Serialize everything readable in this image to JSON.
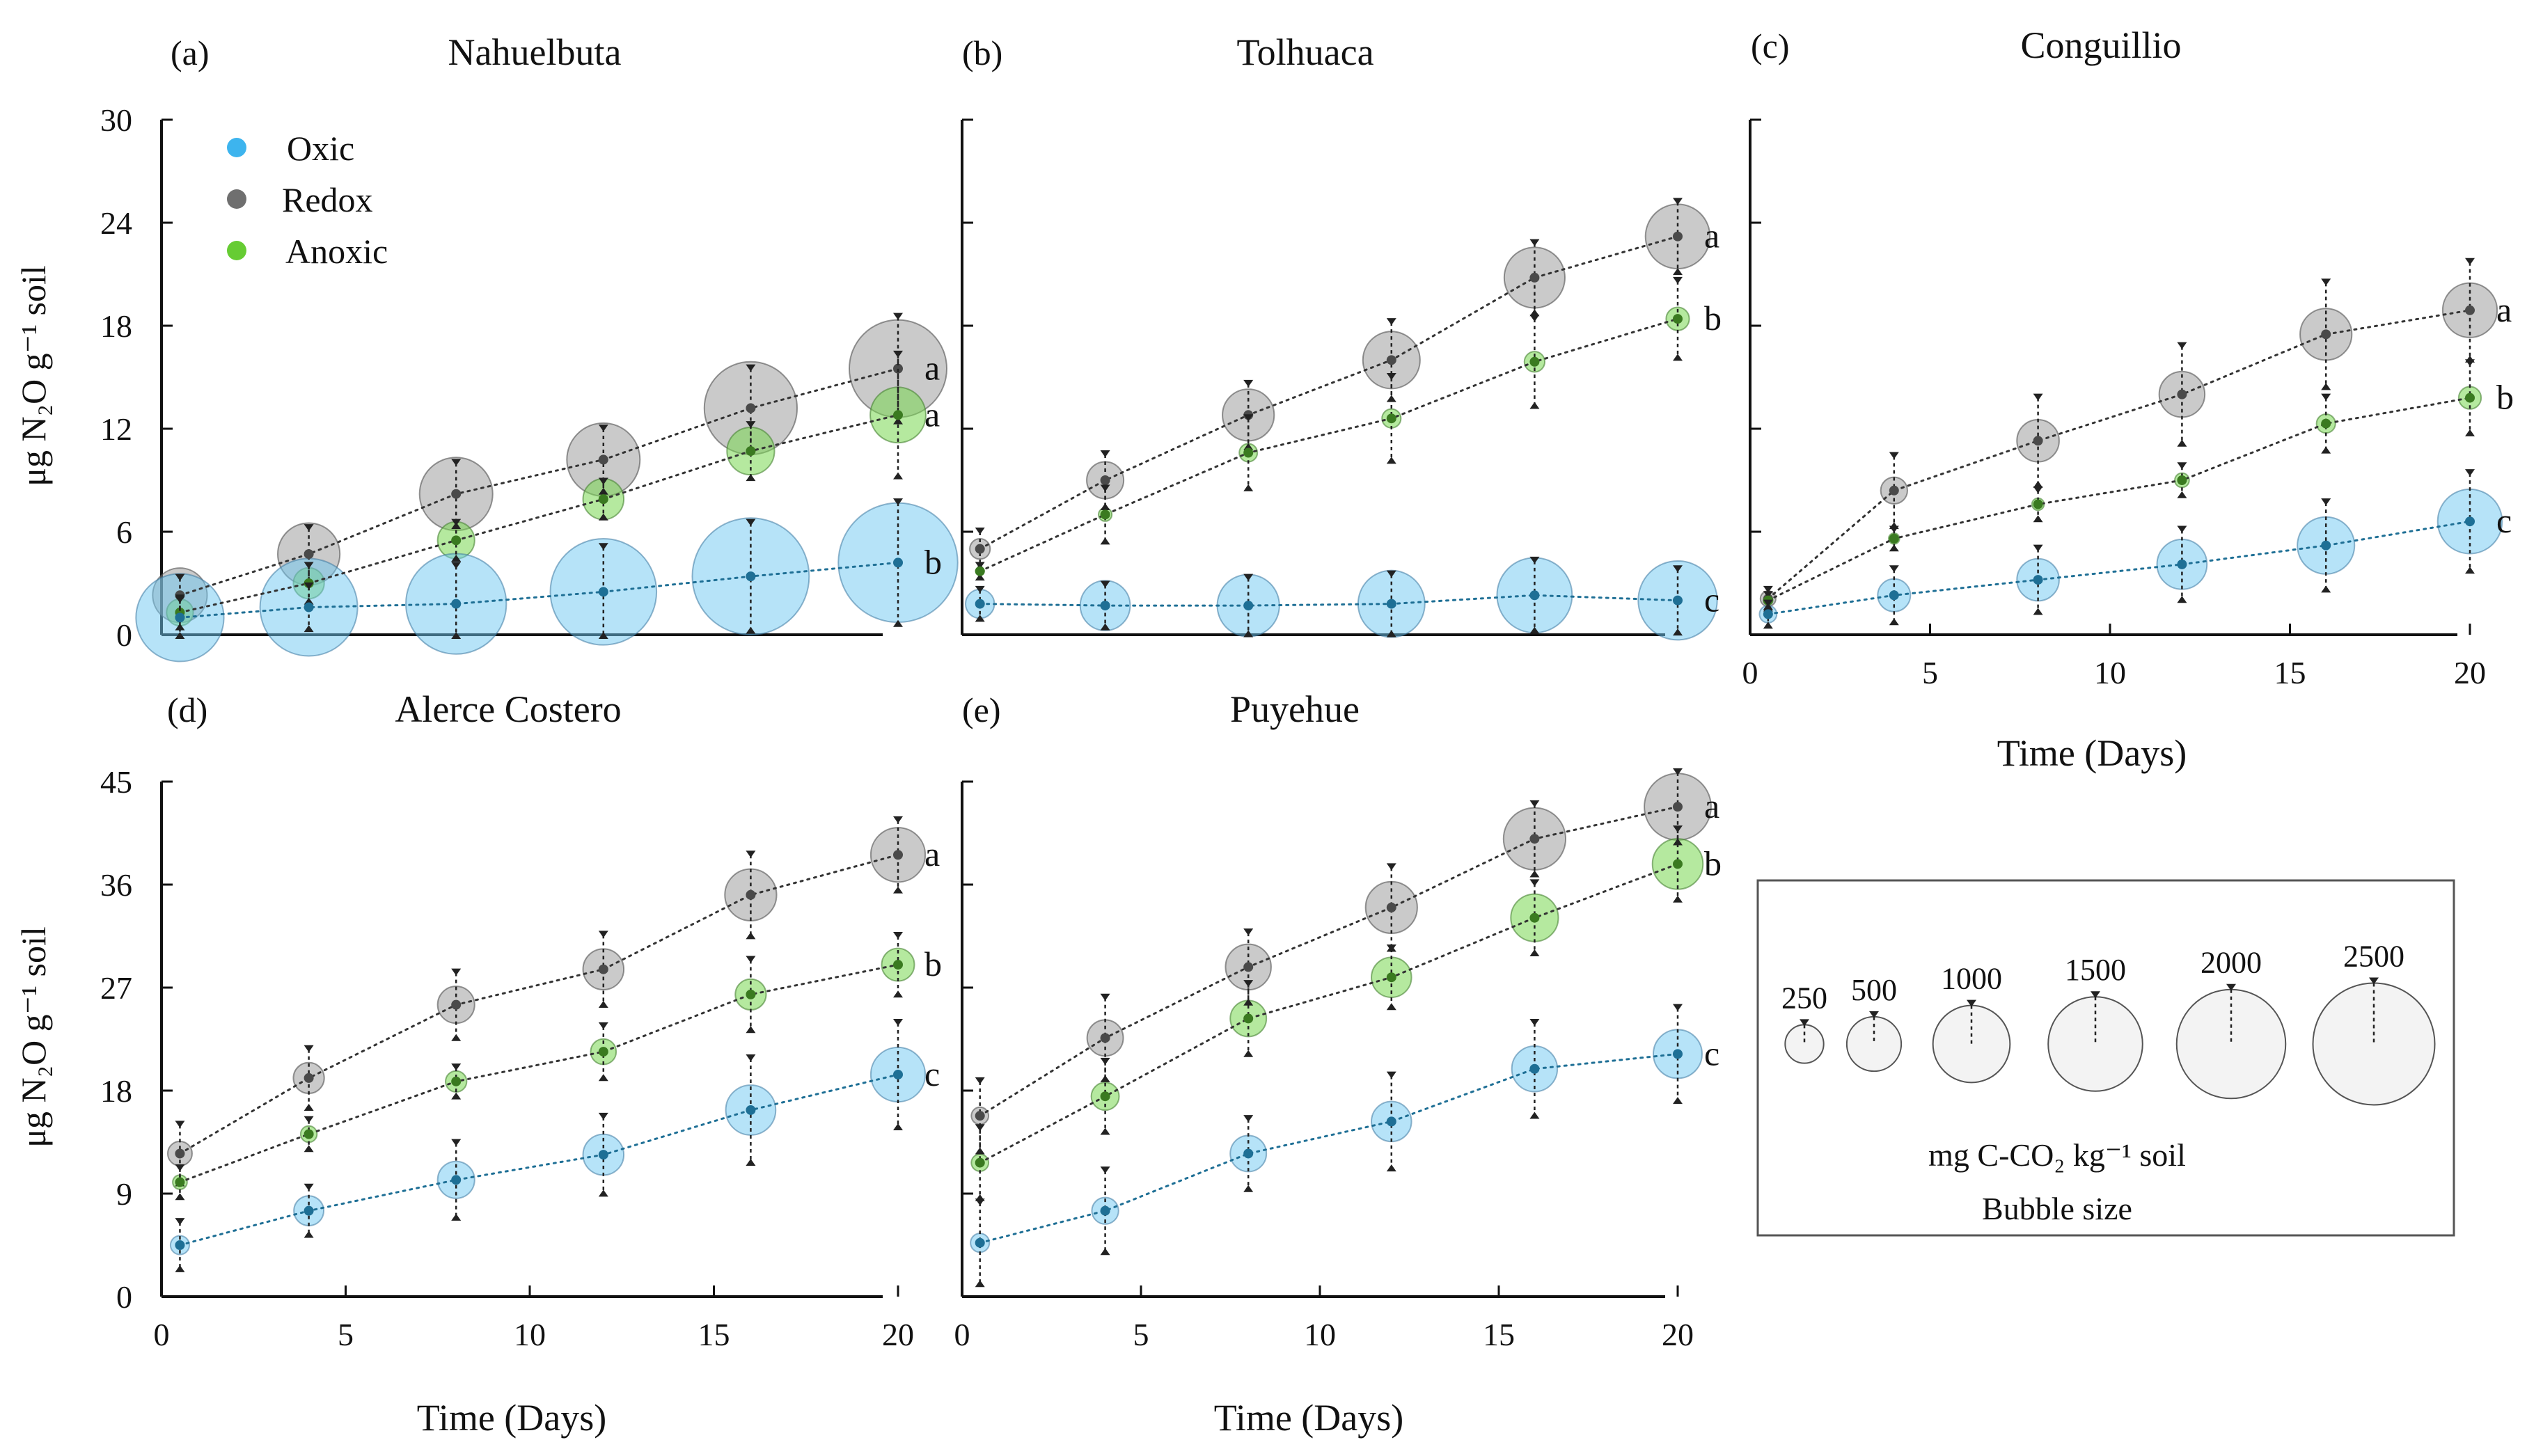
{
  "figure": {
    "legend_series": [
      {
        "name": "Oxic",
        "color": "#3db4ee"
      },
      {
        "name": "Redox",
        "color": "#6f6f6f"
      },
      {
        "name": "Anoxic",
        "color": "#66cc33"
      }
    ],
    "bubble_legend": {
      "sizes": [
        "250",
        "500",
        "1000",
        "1500",
        "2000",
        "2500"
      ],
      "size_values": [
        250,
        500,
        1000,
        1500,
        2000,
        2500
      ],
      "title_line1": "mg C-CO₂ kg⁻¹ soil",
      "title_line2": "Bubble size"
    }
  },
  "chart_data": [
    {
      "type": "scatter",
      "panel": "(a)",
      "title": "Nahuelbuta",
      "ylabel": "μg N₂O g⁻¹ soil",
      "xlabel": "",
      "ylim": [
        0,
        30
      ],
      "yticks": [
        "0",
        "6",
        "12",
        "18",
        "24",
        "30"
      ],
      "xlim": [
        0,
        20
      ],
      "xticks": [],
      "x": [
        0.5,
        4,
        8,
        12,
        16,
        20
      ],
      "series": [
        {
          "name": "Oxic",
          "values": [
            1.0,
            1.6,
            1.8,
            2.5,
            3.4,
            4.2
          ],
          "errors": [
            1.0,
            1.2,
            2.2,
            2.6,
            3.1,
            3.5
          ],
          "bubble": [
            1300,
            1600,
            1700,
            1900,
            2300,
            2400
          ],
          "letter": "b"
        },
        {
          "name": "Redox",
          "values": [
            2.3,
            4.7,
            8.2,
            10.2,
            13.2,
            15.5
          ],
          "errors": [
            1.0,
            1.5,
            1.8,
            1.8,
            2.3,
            3.0
          ],
          "bubble": [
            500,
            650,
            900,
            900,
            1450,
            1600
          ],
          "letter": "a"
        },
        {
          "name": "Anoxic",
          "values": [
            1.3,
            3.0,
            5.5,
            7.9,
            10.7,
            12.8
          ],
          "errors": [
            0.8,
            1.0,
            1.0,
            1.0,
            1.5,
            3.5
          ],
          "bubble": [
            120,
            160,
            230,
            280,
            380,
            520
          ],
          "letter": "a"
        }
      ]
    },
    {
      "type": "scatter",
      "panel": "(b)",
      "title": "Tolhuaca",
      "ylabel": "",
      "xlabel": "",
      "ylim": [
        0,
        30
      ],
      "yticks": [],
      "xlim": [
        0,
        20
      ],
      "xticks": [],
      "x": [
        0.5,
        4,
        8,
        12,
        16,
        20
      ],
      "series": [
        {
          "name": "Oxic",
          "values": [
            1.8,
            1.7,
            1.7,
            1.8,
            2.3,
            2.0
          ],
          "errors": [
            0.8,
            1.2,
            1.6,
            1.7,
            2.0,
            1.8
          ],
          "bubble": [
            140,
            420,
            650,
            750,
            950,
            1050
          ],
          "letter": "c"
        },
        {
          "name": "Redox",
          "values": [
            5.0,
            9.0,
            12.8,
            16.0,
            20.8,
            23.2
          ],
          "errors": [
            1.0,
            1.5,
            1.8,
            2.2,
            2.0,
            2.0
          ],
          "bubble": [
            70,
            230,
            450,
            550,
            620,
            700
          ],
          "letter": "a"
        },
        {
          "name": "Anoxic",
          "values": [
            3.7,
            7.0,
            10.6,
            12.6,
            15.9,
            18.4
          ],
          "errors": [
            0.3,
            1.5,
            2.0,
            2.4,
            2.5,
            2.2
          ],
          "bubble": [
            12,
            30,
            55,
            60,
            70,
            90
          ],
          "letter": "b"
        }
      ]
    },
    {
      "type": "scatter",
      "panel": "(c)",
      "title": "Conguillio",
      "ylabel": "",
      "xlabel": "Time (Days)",
      "ylim": [
        0,
        30
      ],
      "yticks": [],
      "xlim": [
        0,
        20
      ],
      "xticks": [
        "0",
        "5",
        "10",
        "15",
        "20"
      ],
      "x": [
        0.5,
        4,
        8,
        12,
        16,
        20
      ],
      "series": [
        {
          "name": "Oxic",
          "values": [
            1.2,
            2.3,
            3.2,
            4.1,
            5.2,
            6.6
          ],
          "errors": [
            0.6,
            1.5,
            1.8,
            2.0,
            2.5,
            2.8
          ],
          "bubble": [
            50,
            180,
            300,
            420,
            550,
            700
          ],
          "letter": "c"
        },
        {
          "name": "Redox",
          "values": [
            2.1,
            8.4,
            11.3,
            14.0,
            17.5,
            18.9
          ],
          "errors": [
            0.5,
            2.0,
            2.5,
            2.8,
            3.0,
            2.8
          ],
          "bubble": [
            40,
            120,
            300,
            350,
            450,
            500
          ],
          "letter": "a"
        },
        {
          "name": "Anoxic",
          "values": [
            2.0,
            5.6,
            7.6,
            9.0,
            12.3,
            13.8
          ],
          "errors": [
            0.3,
            0.5,
            0.8,
            0.8,
            1.5,
            2.0
          ],
          "bubble": [
            15,
            20,
            25,
            35,
            60,
            85
          ],
          "letter": "b"
        }
      ]
    },
    {
      "type": "scatter",
      "panel": "(d)",
      "title": "Alerce Costero",
      "ylabel": "μg N₂O g⁻¹ soil",
      "xlabel": "Time (Days)",
      "ylim": [
        0,
        45
      ],
      "yticks": [
        "0",
        "9",
        "18",
        "27",
        "36",
        "45"
      ],
      "xlim": [
        0,
        20
      ],
      "xticks": [
        "0",
        "5",
        "10",
        "15",
        "20"
      ],
      "x": [
        0.5,
        4,
        8,
        12,
        16,
        20
      ],
      "series": [
        {
          "name": "Oxic",
          "values": [
            4.5,
            7.5,
            10.2,
            12.4,
            16.3,
            19.4
          ],
          "errors": [
            2.0,
            2.0,
            3.2,
            3.3,
            4.5,
            4.5
          ],
          "bubble": [
            60,
            150,
            230,
            280,
            420,
            500
          ],
          "letter": "c"
        },
        {
          "name": "Redox",
          "values": [
            12.5,
            19.1,
            25.5,
            28.6,
            35.1,
            38.6
          ],
          "errors": [
            2.5,
            2.5,
            2.8,
            3.0,
            3.5,
            3.0
          ],
          "bubble": [
            100,
            160,
            230,
            280,
            450,
            500
          ],
          "letter": "a"
        },
        {
          "name": "Anoxic",
          "values": [
            10.0,
            14.2,
            18.8,
            21.4,
            26.4,
            29.0
          ],
          "errors": [
            1.2,
            1.2,
            1.2,
            2.2,
            3.0,
            2.5
          ],
          "bubble": [
            35,
            45,
            75,
            110,
            160,
            180
          ],
          "letter": "b"
        }
      ]
    },
    {
      "type": "scatter",
      "panel": "(e)",
      "title": "Puyehue",
      "ylabel": "",
      "xlabel": "Time (Days)",
      "ylim": [
        0,
        45
      ],
      "yticks": [],
      "xlim": [
        0,
        20
      ],
      "xticks": [
        "0",
        "5",
        "10",
        "15",
        "20"
      ],
      "x": [
        0.5,
        4,
        8,
        12,
        16,
        20
      ],
      "series": [
        {
          "name": "Oxic",
          "values": [
            4.7,
            7.5,
            12.5,
            15.3,
            19.9,
            21.2
          ],
          "errors": [
            3.5,
            3.5,
            3.0,
            4.0,
            4.0,
            4.0
          ],
          "bubble": [
            60,
            120,
            220,
            270,
            350,
            400
          ],
          "letter": "c"
        },
        {
          "name": "Redox",
          "values": [
            15.8,
            22.6,
            28.8,
            34.0,
            40.0,
            42.8
          ],
          "errors": [
            3.0,
            3.5,
            3.0,
            3.5,
            3.0,
            3.0
          ],
          "bubble": [
            50,
            220,
            350,
            450,
            650,
            750
          ],
          "letter": "a"
        },
        {
          "name": "Anoxic",
          "values": [
            11.7,
            17.5,
            24.3,
            27.9,
            33.1,
            37.8
          ],
          "errors": [
            3.0,
            3.0,
            3.0,
            2.5,
            3.0,
            3.0
          ],
          "bubble": [
            50,
            130,
            220,
            270,
            380,
            430
          ],
          "letter": "b"
        }
      ]
    }
  ]
}
